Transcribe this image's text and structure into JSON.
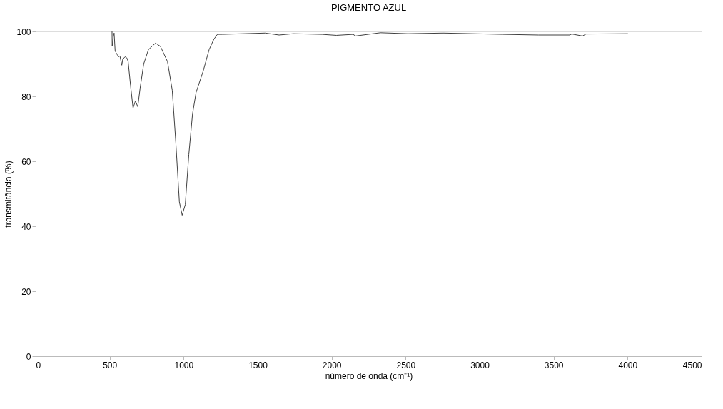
{
  "chart_data": {
    "type": "line",
    "title": "PIGMENTO AZUL",
    "xlabel": "número de onda (cm⁻¹)",
    "ylabel": "transmitância (%)",
    "xlim": [
      0,
      4500
    ],
    "xticks": [
      0,
      500,
      1000,
      1500,
      2000,
      2500,
      3000,
      3500,
      4000,
      4500
    ],
    "ylim": [
      0,
      100
    ],
    "yticks": [
      0,
      20,
      40,
      60,
      80,
      100
    ],
    "grid": false,
    "marker": "none",
    "line_style": "solid",
    "x": [
      516,
      517,
      524,
      530,
      537,
      550,
      561,
      569,
      582,
      588,
      604,
      617,
      625,
      641,
      658,
      674,
      690,
      706,
      730,
      762,
      810,
      843,
      891,
      923,
      947,
      971,
      990,
      1011,
      1035,
      1060,
      1084,
      1132,
      1172,
      1204,
      1228,
      1260,
      1550,
      1645,
      1742,
      1935,
      2032,
      2145,
      2161,
      2330,
      2515,
      2754,
      3158,
      3399,
      3608,
      3623,
      3695,
      3719,
      4002
    ],
    "series": [
      {
        "color": "#404040",
        "values": [
          100,
          95.4,
          98.4,
          99.5,
          94,
          92.9,
          92.2,
          92.5,
          89.6,
          91.4,
          92.2,
          91.8,
          90.7,
          83.4,
          76.4,
          78.6,
          76.8,
          82.6,
          90,
          94.4,
          96.4,
          95.4,
          90.7,
          81.9,
          65.8,
          47.5,
          43.4,
          46.7,
          62.1,
          74.6,
          81.2,
          87.8,
          94.4,
          97.6,
          99.1,
          99.1,
          99.5,
          98.9,
          99.3,
          99.1,
          98.8,
          99.1,
          98.6,
          99.6,
          99.3,
          99.5,
          99.1,
          98.9,
          98.9,
          99.2,
          98.6,
          99.2,
          99.3
        ]
      }
    ]
  }
}
